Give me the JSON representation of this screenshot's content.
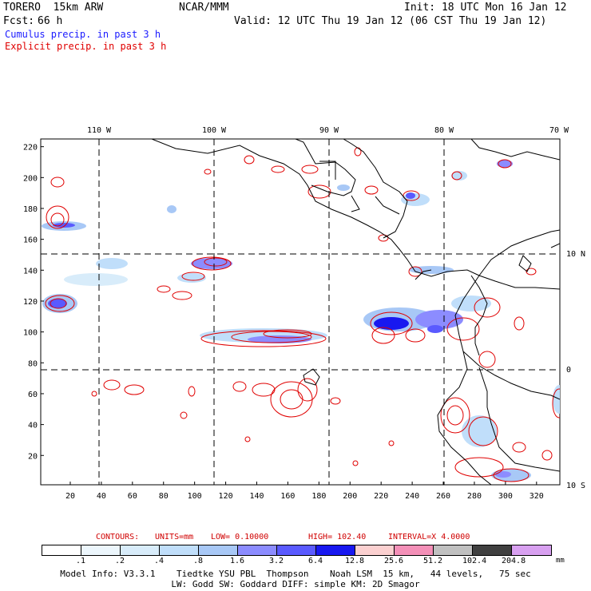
{
  "header": {
    "model": "TORERO  15km ARW",
    "org": "NCAR/MMM",
    "init": "Init: 18 UTC Mon 16 Jan 12",
    "fcst_label": "Fcst:",
    "fcst_value": "66 h",
    "valid": "Valid: 12 UTC Thu 19 Jan 12 (06 CST Thu 19 Jan 12)",
    "cumulus_label": "Cumulus precip. in past 3 h",
    "explicit_label": "Explicit precip. in past 3 h",
    "cumulus_color": "#1c1cff",
    "explicit_color": "#e00000"
  },
  "map": {
    "top_longitudes": [
      "110 W",
      "100 W",
      "90 W",
      "80 W",
      "70 W"
    ],
    "right_latitudes": [
      "10 N",
      "0",
      "10 S"
    ],
    "left_ticks": [
      "220",
      "200",
      "180",
      "160",
      "140",
      "120",
      "100",
      "80",
      "60",
      "40",
      "20"
    ],
    "bottom_ticks": [
      "20",
      "40",
      "60",
      "80",
      "100",
      "120",
      "140",
      "160",
      "180",
      "200",
      "220",
      "240",
      "260",
      "280",
      "300",
      "320"
    ],
    "grid_x_range": [
      1,
      335
    ],
    "grid_y_range": [
      1,
      225
    ]
  },
  "contours": {
    "label": "CONTOURS:",
    "units": "UNITS=mm",
    "low": "LOW= 0.10000",
    "high": "HIGH= 102.40",
    "interval": "INTERVAL=X 4.0000"
  },
  "colorbar": {
    "colors": [
      "#ffffff",
      "#ecf6fc",
      "#d8ecfa",
      "#c0defa",
      "#a8c8f6",
      "#8c8cff",
      "#5a5aff",
      "#1818f0",
      "#fbd0d0",
      "#f490b8",
      "#c0c0c0",
      "#404040",
      "#d8a0f0"
    ],
    "labels": [
      ".1",
      ".2",
      ".4",
      ".8",
      "1.6",
      "3.2",
      "6.4",
      "12.8",
      "25.6",
      "51.2",
      "102.4",
      "204.8"
    ],
    "unit": "mm"
  },
  "footer": {
    "line1": "Model Info: V3.3.1    Tiedtke YSU PBL  Thompson    Noah LSM  15 km,   44 levels,   75 sec",
    "line2": "LW: Godd SW: Goddard DIFF: simple KM: 2D Smagor"
  }
}
